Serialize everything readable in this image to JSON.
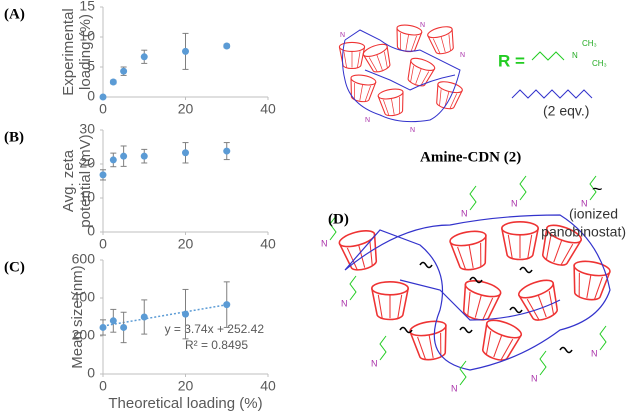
{
  "chart_data": [
    {
      "type": "scatter",
      "panel": "(A)",
      "ylabel": [
        "Experimental",
        "loading (%)"
      ],
      "x": [
        0,
        2.5,
        5,
        10,
        20,
        30
      ],
      "series": [
        {
          "color": "#5b9bd5",
          "values": [
            0,
            2.5,
            4.3,
            6.7,
            7.6,
            8.5
          ],
          "errors": [
            0.2,
            0.3,
            0.7,
            1.1,
            3.0,
            0.3
          ]
        }
      ],
      "xlim": [
        0,
        40
      ],
      "xticks": [
        0,
        20,
        40
      ],
      "ylim": [
        0,
        15
      ],
      "yticks": [
        0,
        5,
        10,
        15
      ]
    },
    {
      "type": "scatter",
      "panel": "(B)",
      "ylabel": [
        "Avg. zeta",
        "potential (mV)"
      ],
      "x": [
        0,
        2.5,
        5,
        10,
        20,
        30
      ],
      "series": [
        {
          "color": "#5b9bd5",
          "values": [
            16.8,
            21.2,
            22.3,
            22.3,
            23.3,
            23.8
          ],
          "errors": [
            1.5,
            2,
            3,
            2,
            3,
            2.5
          ]
        }
      ],
      "xlim": [
        0,
        40
      ],
      "xticks": [
        0,
        20,
        40
      ],
      "ylim": [
        0,
        30
      ],
      "yticks": [
        0,
        10,
        20,
        30
      ]
    },
    {
      "type": "scatter",
      "panel": "(C)",
      "ylabel": [
        "Mean size (nm)"
      ],
      "xlabel": "Theoretical loading (%)",
      "x": [
        0,
        2.5,
        5,
        10,
        20,
        30
      ],
      "series": [
        {
          "color": "#5b9bd5",
          "values": [
            245,
            280,
            245,
            300,
            315,
            365
          ],
          "errors": [
            40,
            60,
            80,
            90,
            130,
            120
          ]
        }
      ],
      "trendline": {
        "slope": 3.74,
        "intercept": 252.42,
        "color": "#5b9bd5",
        "equation": "y = 3.74x + 252.42",
        "r2": "R² = 0.8495"
      },
      "xlim": [
        0,
        40
      ],
      "xticks": [
        0,
        20,
        40
      ],
      "ylim": [
        0,
        600
      ],
      "yticks": [
        0,
        200,
        400,
        600
      ]
    }
  ],
  "diagram": {
    "r_label": "R =",
    "methyl": "CH₃",
    "amine": "N",
    "equivalents": "(2 eqv.)",
    "name": "Amine-CDN (2)",
    "panel": "(D)",
    "tilde": "~",
    "drug": [
      "(ionized",
      "panobinostat)"
    ]
  }
}
